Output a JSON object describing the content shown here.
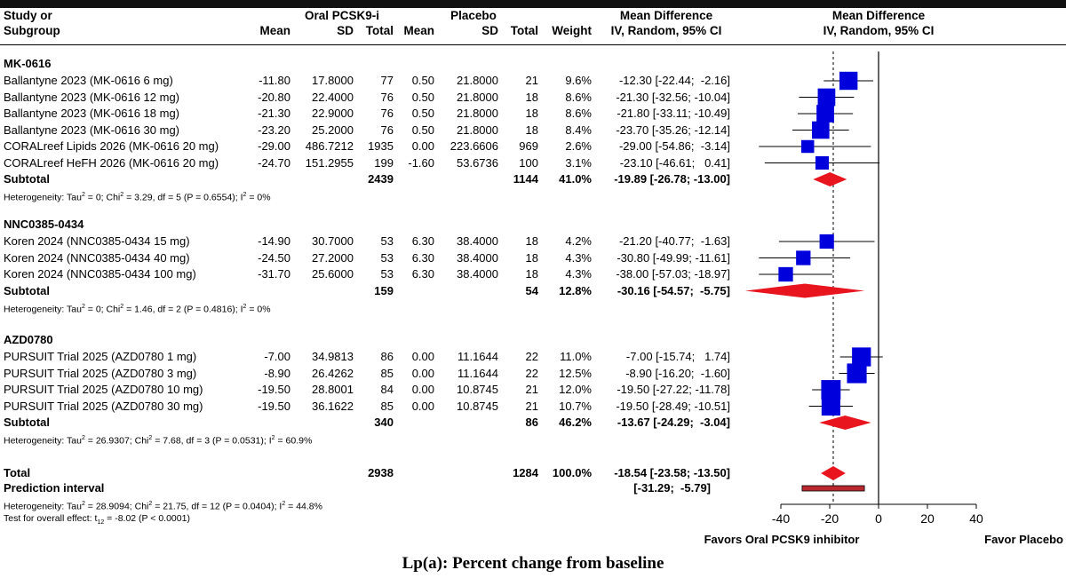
{
  "headers": {
    "study_l1": "Study or",
    "study_l2": "Subgroup",
    "group1": "Oral PCSK9-i",
    "group2": "Placebo",
    "md1": "Mean Difference",
    "md2": "IV, Random, 95% CI",
    "plot1": "Mean Difference",
    "plot2": "IV, Random, 95% CI",
    "mean": "Mean",
    "sd": "SD",
    "total": "Total",
    "weight": "Weight"
  },
  "subgroups": [
    {
      "name": "MK-0616",
      "studies": [
        {
          "study": "Ballantyne 2023 (MK-0616 6 mg)",
          "m1": "-11.80",
          "sd1": "17.8000",
          "n1": "77",
          "m2": "0.50",
          "sd2": "21.8000",
          "n2": "21",
          "weight": "9.6%",
          "ci": "-12.30 [-22.44;  -2.16]"
        },
        {
          "study": "Ballantyne 2023 (MK-0616 12 mg)",
          "m1": "-20.80",
          "sd1": "22.4000",
          "n1": "76",
          "m2": "0.50",
          "sd2": "21.8000",
          "n2": "18",
          "weight": "8.6%",
          "ci": "-21.30 [-32.56; -10.04]"
        },
        {
          "study": "Ballantyne 2023 (MK-0616 18 mg)",
          "m1": "-21.30",
          "sd1": "22.9000",
          "n1": "76",
          "m2": "0.50",
          "sd2": "21.8000",
          "n2": "18",
          "weight": "8.6%",
          "ci": "-21.80 [-33.11; -10.49]"
        },
        {
          "study": "Ballantyne 2023 (MK-0616 30 mg)",
          "m1": "-23.20",
          "sd1": "25.2000",
          "n1": "76",
          "m2": "0.50",
          "sd2": "21.8000",
          "n2": "18",
          "weight": "8.4%",
          "ci": "-23.70 [-35.26; -12.14]"
        },
        {
          "study": "CORALreef Lipids 2026 (MK-0616 20 mg)",
          "m1": "-29.00",
          "sd1": "486.7212",
          "n1": "1935",
          "m2": "0.00",
          "sd2": "223.6606",
          "n2": "969",
          "weight": "2.6%",
          "ci": "-29.00 [-54.86;  -3.14]"
        },
        {
          "study": "CORALreef HeFH 2026 (MK-0616 20 mg)",
          "m1": "-24.70",
          "sd1": "151.2955",
          "n1": "199",
          "m2": "-1.60",
          "sd2": "53.6736",
          "n2": "100",
          "weight": "3.1%",
          "ci": "-23.10 [-46.61;   0.41]"
        }
      ],
      "subtotal": {
        "label": "Subtotal",
        "n1": "2439",
        "n2": "1144",
        "weight": "41.0%",
        "ci": "-19.89 [-26.78; -13.00]"
      },
      "het_a": "Heterogeneity: Tau",
      "het_b": " = 0; Chi",
      "het_c": " = 3.29, df = 5 (P = 0.6554); I",
      "het_d": " = 0%"
    },
    {
      "name": "NNC0385-0434",
      "studies": [
        {
          "study": "Koren 2024 (NNC0385-0434 15 mg)",
          "m1": "-14.90",
          "sd1": "30.7000",
          "n1": "53",
          "m2": "6.30",
          "sd2": "38.4000",
          "n2": "18",
          "weight": "4.2%",
          "ci": "-21.20 [-40.77;  -1.63]"
        },
        {
          "study": "Koren 2024 (NNC0385-0434 40 mg)",
          "m1": "-24.50",
          "sd1": "27.2000",
          "n1": "53",
          "m2": "6.30",
          "sd2": "38.4000",
          "n2": "18",
          "weight": "4.3%",
          "ci": "-30.80 [-49.99; -11.61]"
        },
        {
          "study": "Koren 2024 (NNC0385-0434 100 mg)",
          "m1": "-31.70",
          "sd1": "25.6000",
          "n1": "53",
          "m2": "6.30",
          "sd2": "38.4000",
          "n2": "18",
          "weight": "4.3%",
          "ci": "-38.00 [-57.03; -18.97]"
        }
      ],
      "subtotal": {
        "label": "Subtotal",
        "n1": "159",
        "n2": "54",
        "weight": "12.8%",
        "ci": "-30.16 [-54.57;  -5.75]"
      },
      "het_a": "Heterogeneity: Tau",
      "het_b": " = 0; Chi",
      "het_c": " = 1.46, df = 2 (P = 0.4816); I",
      "het_d": " = 0%"
    },
    {
      "name": "AZD0780",
      "studies": [
        {
          "study": "PURSUIT Trial 2025 (AZD0780 1 mg)",
          "m1": "-7.00",
          "sd1": "34.9813",
          "n1": "86",
          "m2": "0.00",
          "sd2": "11.1644",
          "n2": "22",
          "weight": "11.0%",
          "ci": "-7.00 [-15.74;   1.74]"
        },
        {
          "study": "PURSUIT Trial 2025 (AZD0780 3 mg)",
          "m1": "-8.90",
          "sd1": "26.4262",
          "n1": "85",
          "m2": "0.00",
          "sd2": "11.1644",
          "n2": "22",
          "weight": "12.5%",
          "ci": "-8.90 [-16.20;  -1.60]"
        },
        {
          "study": "PURSUIT Trial 2025 (AZD0780 10 mg)",
          "m1": "-19.50",
          "sd1": "28.8001",
          "n1": "84",
          "m2": "0.00",
          "sd2": "10.8745",
          "n2": "21",
          "weight": "12.0%",
          "ci": "-19.50 [-27.22; -11.78]"
        },
        {
          "study": "PURSUIT Trial 2025 (AZD0780 30 mg)",
          "m1": "-19.50",
          "sd1": "36.1622",
          "n1": "85",
          "m2": "0.00",
          "sd2": "10.8745",
          "n2": "21",
          "weight": "10.7%",
          "ci": "-19.50 [-28.49; -10.51]"
        }
      ],
      "subtotal": {
        "label": "Subtotal",
        "n1": "340",
        "n2": "86",
        "weight": "46.2%",
        "ci": "-13.67 [-24.29;  -3.04]"
      },
      "het_a": "Heterogeneity: Tau",
      "het_b": " = 26.9307; Chi",
      "het_c": " = 7.68, df = 3 (P = 0.0531); I",
      "het_d": " = 60.9%"
    }
  ],
  "overall": {
    "total_label": "Total",
    "n1": "2938",
    "n2": "1284",
    "weight": "100.0%",
    "ci": "-18.54 [-23.58; -13.50]",
    "pi_label": "Prediction interval",
    "pi_ci": "[-31.29;  -5.79]",
    "het_a": "Heterogeneity: Tau",
    "het_b": " = 28.9094; Chi",
    "het_c": " = 21.75, df = 12 (P = 0.0404); I",
    "het_d": " = 44.8%",
    "test_a": "Test for overall effect: t",
    "test_sub": "12",
    "test_b": " = -8.02 (P < 0.0001)",
    "sup": "2"
  },
  "axis": {
    "labels": [
      "Favors Oral PCSK9 inhibitor",
      "Favor Placebo"
    ],
    "caption": "Lp(a): Percent change from baseline"
  },
  "chart_data": {
    "type": "forest",
    "xlim": [
      -40,
      40
    ],
    "x_ticks": [
      -40,
      -20,
      0,
      20,
      40
    ],
    "null_line": 0,
    "overall_effect_line": -18.54,
    "studies": [
      {
        "name": "Ballantyne 2023 (MK-0616 6 mg)",
        "md": -12.3,
        "lo": -22.44,
        "hi": -2.16,
        "weight": 9.6
      },
      {
        "name": "Ballantyne 2023 (MK-0616 12 mg)",
        "md": -21.3,
        "lo": -32.56,
        "hi": -10.04,
        "weight": 8.6
      },
      {
        "name": "Ballantyne 2023 (MK-0616 18 mg)",
        "md": -21.8,
        "lo": -33.11,
        "hi": -10.49,
        "weight": 8.6
      },
      {
        "name": "Ballantyne 2023 (MK-0616 30 mg)",
        "md": -23.7,
        "lo": -35.26,
        "hi": -12.14,
        "weight": 8.4
      },
      {
        "name": "CORALreef Lipids 2026 (MK-0616 20 mg)",
        "md": -29.0,
        "lo": -54.86,
        "hi": -3.14,
        "weight": 2.6
      },
      {
        "name": "CORALreef HeFH 2026 (MK-0616 20 mg)",
        "md": -23.1,
        "lo": -46.61,
        "hi": 0.41,
        "weight": 3.1
      },
      {
        "name": "Koren 2024 (NNC0385-0434 15 mg)",
        "md": -21.2,
        "lo": -40.77,
        "hi": -1.63,
        "weight": 4.2
      },
      {
        "name": "Koren 2024 (NNC0385-0434 40 mg)",
        "md": -30.8,
        "lo": -49.99,
        "hi": -11.61,
        "weight": 4.3
      },
      {
        "name": "Koren 2024 (NNC0385-0434 100 mg)",
        "md": -38.0,
        "lo": -57.03,
        "hi": -18.97,
        "weight": 4.3
      },
      {
        "name": "PURSUIT Trial 2025 (AZD0780 1 mg)",
        "md": -7.0,
        "lo": -15.74,
        "hi": 1.74,
        "weight": 11.0
      },
      {
        "name": "PURSUIT Trial 2025 (AZD0780 3 mg)",
        "md": -8.9,
        "lo": -16.2,
        "hi": -1.6,
        "weight": 12.5
      },
      {
        "name": "PURSUIT Trial 2025 (AZD0780 10 mg)",
        "md": -19.5,
        "lo": -27.22,
        "hi": -11.78,
        "weight": 12.0
      },
      {
        "name": "PURSUIT Trial 2025 (AZD0780 30 mg)",
        "md": -19.5,
        "lo": -28.49,
        "hi": -10.51,
        "weight": 10.7
      }
    ],
    "pooled": [
      {
        "name": "Subtotal MK-0616",
        "md": -19.89,
        "lo": -26.78,
        "hi": -13.0
      },
      {
        "name": "Subtotal NNC0385-0434",
        "md": -30.16,
        "lo": -54.57,
        "hi": -5.75
      },
      {
        "name": "Subtotal AZD0780",
        "md": -13.67,
        "lo": -24.29,
        "hi": -3.04
      },
      {
        "name": "Total",
        "md": -18.54,
        "lo": -23.58,
        "hi": -13.5
      }
    ],
    "prediction_interval": {
      "lo": -31.29,
      "hi": -5.79
    },
    "colors": {
      "study": "#0000dd",
      "pooled": "#e8141e",
      "prediction": "#b8282e"
    }
  }
}
